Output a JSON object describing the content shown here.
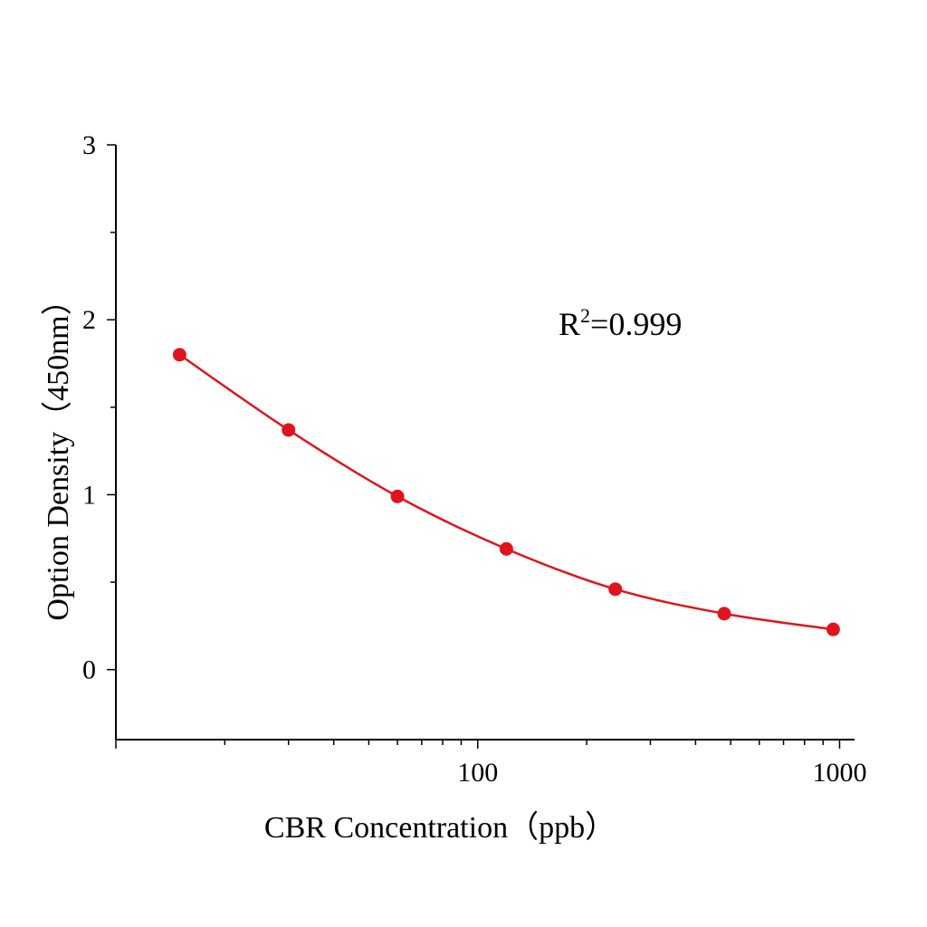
{
  "chart_data": {
    "type": "scatter",
    "xlabel": "CBR Concentration（ppb）",
    "ylabel": "Option Density（450nm）",
    "xscale": "log",
    "xlim": [
      10,
      1100
    ],
    "ylim": [
      -0.4,
      3
    ],
    "x_tick_labels": [
      "100",
      "1000"
    ],
    "y_tick_labels": [
      "0",
      "1",
      "2",
      "3"
    ],
    "annotation": {
      "prefix": "R",
      "superscript": "2",
      "suffix": "=0.999"
    },
    "series": [
      {
        "color": "#e0141e",
        "x": [
          15,
          30,
          60,
          120,
          240,
          480,
          960
        ],
        "y": [
          1.8,
          1.37,
          0.99,
          0.69,
          0.46,
          0.32,
          0.23
        ],
        "fit_line": true
      }
    ],
    "grid": false,
    "legend": "none"
  }
}
